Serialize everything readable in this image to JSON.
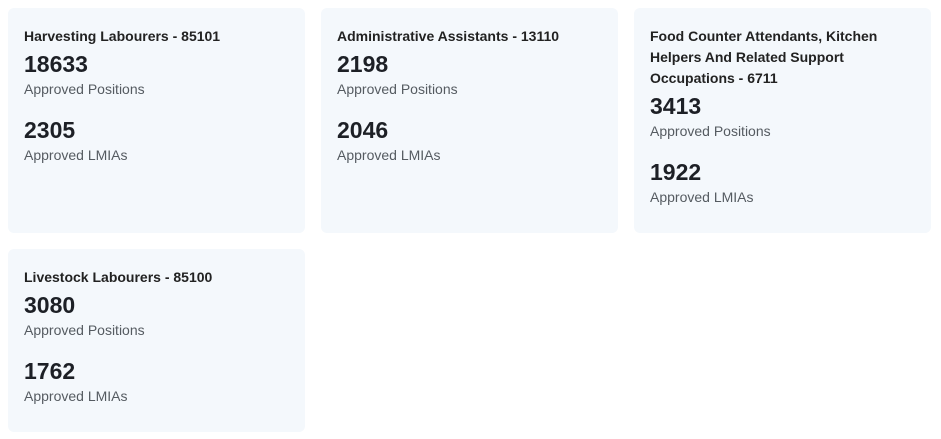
{
  "cards": [
    {
      "title": "Harvesting Labourers - 85101",
      "positions_value": "18633",
      "positions_label": "Approved Positions",
      "lmias_value": "2305",
      "lmias_label": "Approved LMIAs"
    },
    {
      "title": "Administrative Assistants - 13110",
      "positions_value": "2198",
      "positions_label": "Approved Positions",
      "lmias_value": "2046",
      "lmias_label": "Approved LMIAs"
    },
    {
      "title": "Food Counter Attendants, Kitchen Helpers And Related Support Occupations - 6711",
      "positions_value": "3413",
      "positions_label": "Approved Positions",
      "lmias_value": "1922",
      "lmias_label": "Approved LMIAs"
    },
    {
      "title": "Livestock Labourers - 85100",
      "positions_value": "3080",
      "positions_label": "Approved Positions",
      "lmias_value": "1762",
      "lmias_label": "Approved LMIAs"
    }
  ]
}
